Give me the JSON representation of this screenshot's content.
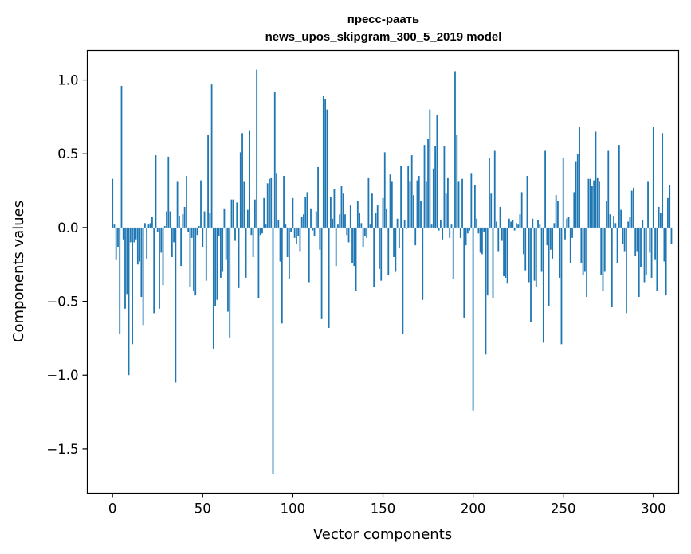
{
  "chart_data": {
    "type": "bar",
    "title_line1": "пресс-раать",
    "title_line2": "news_upos_skipgram_300_5_2019 model",
    "xlabel": "Vector components",
    "ylabel": "Components values",
    "xlim": [
      -14,
      314
    ],
    "ylim": [
      -1.8,
      1.2
    ],
    "xticks": [
      0,
      50,
      100,
      150,
      200,
      250,
      300
    ],
    "xtick_labels": [
      "0",
      "50",
      "100",
      "150",
      "200",
      "250",
      "300"
    ],
    "yticks": [
      1.0,
      0.5,
      0.0,
      -0.5,
      -1.0,
      -1.5
    ],
    "ytick_labels": [
      "1.0",
      "0.5",
      "0.0",
      "−0.5",
      "−1.0",
      "−1.5"
    ],
    "color": "#1f77b4",
    "values": [
      0.33,
      0.02,
      -0.22,
      -0.13,
      -0.72,
      0.96,
      -0.08,
      -0.55,
      -0.45,
      -1.0,
      -0.1,
      -0.79,
      -0.1,
      -0.08,
      -0.25,
      -0.23,
      -0.47,
      -0.66,
      0.03,
      -0.21,
      0.02,
      0.03,
      0.07,
      -0.58,
      0.49,
      -0.03,
      -0.55,
      -0.17,
      -0.39,
      0.01,
      0.11,
      0.48,
      0.11,
      -0.2,
      -0.1,
      -1.05,
      0.31,
      0.08,
      -0.26,
      0.09,
      0.14,
      0.35,
      -0.03,
      -0.4,
      -0.07,
      -0.43,
      -0.46,
      -0.05,
      0.01,
      0.32,
      -0.13,
      0.11,
      -0.36,
      0.63,
      0.1,
      0.97,
      -0.82,
      -0.53,
      -0.49,
      -0.06,
      -0.34,
      -0.3,
      0.13,
      -0.22,
      -0.57,
      -0.75,
      0.19,
      0.19,
      -0.09,
      0.17,
      -0.41,
      0.51,
      0.64,
      0.31,
      -0.34,
      0.12,
      0.66,
      -0.05,
      -0.2,
      0.19,
      1.07,
      -0.48,
      -0.05,
      -0.04,
      0.2,
      0.02,
      0.3,
      0.33,
      0.34,
      -1.67,
      0.92,
      0.37,
      0.05,
      -0.23,
      -0.65,
      0.35,
      0.02,
      -0.2,
      -0.35,
      -0.03,
      0.2,
      -0.07,
      -0.11,
      -0.06,
      -0.16,
      0.07,
      0.09,
      0.21,
      0.24,
      -0.37,
      0.13,
      -0.02,
      -0.06,
      0.11,
      0.41,
      -0.15,
      -0.62,
      0.89,
      0.87,
      0.8,
      -0.68,
      0.21,
      0.06,
      0.26,
      -0.26,
      0.02,
      0.09,
      0.28,
      0.23,
      0.09,
      -0.05,
      -0.1,
      0.15,
      -0.24,
      -0.26,
      -0.43,
      0.18,
      0.1,
      0.03,
      -0.13,
      -0.06,
      -0.07,
      0.34,
      0.02,
      0.23,
      -0.4,
      0.1,
      0.15,
      -0.28,
      -0.36,
      0.2,
      0.51,
      0.13,
      -0.32,
      0.36,
      0.31,
      -0.2,
      -0.3,
      0.06,
      -0.14,
      0.42,
      -0.72,
      0.05,
      -0.01,
      0.42,
      0.31,
      0.49,
      0.22,
      -0.12,
      0.32,
      0.35,
      0.18,
      -0.49,
      0.56,
      0.31,
      0.6,
      0.8,
      0.02,
      0.4,
      0.55,
      0.76,
      -0.02,
      0.05,
      -0.08,
      0.55,
      0.23,
      0.34,
      -0.07,
      0.02,
      -0.35,
      1.06,
      0.63,
      0.31,
      -0.07,
      0.33,
      -0.61,
      -0.12,
      -0.04,
      -0.02,
      0.37,
      -1.24,
      0.29,
      0.06,
      -0.04,
      -0.17,
      -0.18,
      -0.03,
      -0.86,
      -0.46,
      0.47,
      0.23,
      -0.48,
      0.52,
      0.04,
      -0.16,
      0.14,
      -0.09,
      -0.33,
      -0.34,
      -0.38,
      0.06,
      0.04,
      0.05,
      -0.02,
      0.03,
      0.02,
      0.09,
      0.24,
      -0.18,
      -0.29,
      0.35,
      -0.37,
      -0.64,
      0.06,
      -0.36,
      -0.4,
      0.05,
      0.02,
      -0.3,
      -0.78,
      0.52,
      -0.12,
      -0.53,
      -0.15,
      -0.21,
      0.03,
      0.22,
      0.18,
      -0.34,
      -0.79,
      0.47,
      -0.08,
      0.06,
      0.07,
      -0.24,
      -0.07,
      0.24,
      0.45,
      0.5,
      0.68,
      -0.24,
      -0.32,
      -0.3,
      -0.47,
      0.33,
      0.33,
      0.28,
      0.32,
      0.65,
      0.34,
      0.31,
      -0.32,
      -0.43,
      -0.3,
      0.18,
      0.52,
      0.09,
      -0.54,
      0.08,
      0.03,
      -0.24,
      0.56,
      0.12,
      -0.11,
      -0.16,
      -0.58,
      0.04,
      0.07,
      0.25,
      0.27,
      -0.19,
      -0.16,
      -0.47,
      -0.27,
      0.05,
      -0.37,
      -0.32,
      0.31,
      -0.17,
      -0.34,
      0.68,
      -0.22,
      -0.43,
      0.14,
      0.1,
      0.64,
      -0.23,
      -0.46,
      0.2,
      0.29,
      -0.11
    ]
  }
}
